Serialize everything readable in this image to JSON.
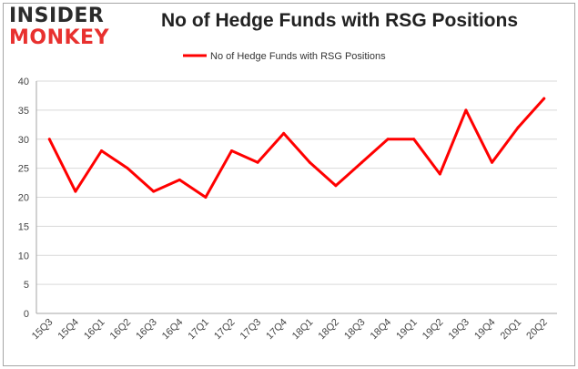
{
  "logo": {
    "line1": "INSIDER",
    "line2": "MONKEY"
  },
  "colors": {
    "series": "#ff0000",
    "grid": "#d9d9d9",
    "border": "#a6a6a6",
    "brand_red": "#e8312f"
  },
  "chart_data": {
    "type": "line",
    "title": "No of Hedge Funds with RSG Positions",
    "xlabel": "",
    "ylabel": "",
    "categories": [
      "15Q3",
      "15Q4",
      "16Q1",
      "16Q2",
      "16Q3",
      "16Q4",
      "17Q1",
      "17Q2",
      "17Q3",
      "17Q4",
      "18Q1",
      "18Q2",
      "18Q3",
      "18Q4",
      "19Q1",
      "19Q2",
      "19Q3",
      "19Q4",
      "20Q1",
      "20Q2"
    ],
    "series": [
      {
        "name": "No of Hedge Funds with RSG Positions",
        "values": [
          30,
          21,
          28,
          25,
          21,
          23,
          20,
          28,
          26,
          31,
          26,
          22,
          26,
          30,
          30,
          24,
          35,
          26,
          32,
          37
        ]
      }
    ],
    "ylim": [
      0,
      40
    ],
    "yticks": [
      "0",
      "5",
      "10",
      "15",
      "20",
      "25",
      "30",
      "35",
      "40"
    ],
    "grid": true,
    "legend_position": "top-center"
  }
}
